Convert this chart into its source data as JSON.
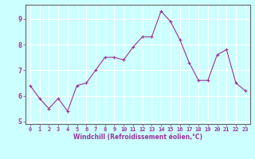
{
  "x": [
    0,
    1,
    2,
    3,
    4,
    5,
    6,
    7,
    8,
    9,
    10,
    11,
    12,
    13,
    14,
    15,
    16,
    17,
    18,
    19,
    20,
    21,
    22,
    23
  ],
  "y": [
    6.4,
    5.9,
    5.5,
    5.9,
    5.4,
    6.4,
    6.5,
    7.0,
    7.5,
    7.5,
    7.4,
    7.9,
    8.3,
    8.3,
    9.3,
    8.9,
    8.2,
    7.3,
    6.6,
    6.6,
    7.6,
    7.8,
    6.5,
    6.2
  ],
  "line_color": "#993399",
  "marker": "+",
  "marker_size": 3,
  "bg_color": "#ccffff",
  "grid_color": "#ffffff",
  "xlabel": "Windchill (Refroidissement éolien,°C)",
  "xlabel_color": "#993399",
  "tick_color": "#993399",
  "spine_color": "#666666",
  "ylim": [
    4.9,
    9.55
  ],
  "xlim": [
    -0.5,
    23.5
  ],
  "yticks": [
    5,
    6,
    7,
    8,
    9
  ],
  "xticks": [
    0,
    1,
    2,
    3,
    4,
    5,
    6,
    7,
    8,
    9,
    10,
    11,
    12,
    13,
    14,
    15,
    16,
    17,
    18,
    19,
    20,
    21,
    22,
    23
  ]
}
